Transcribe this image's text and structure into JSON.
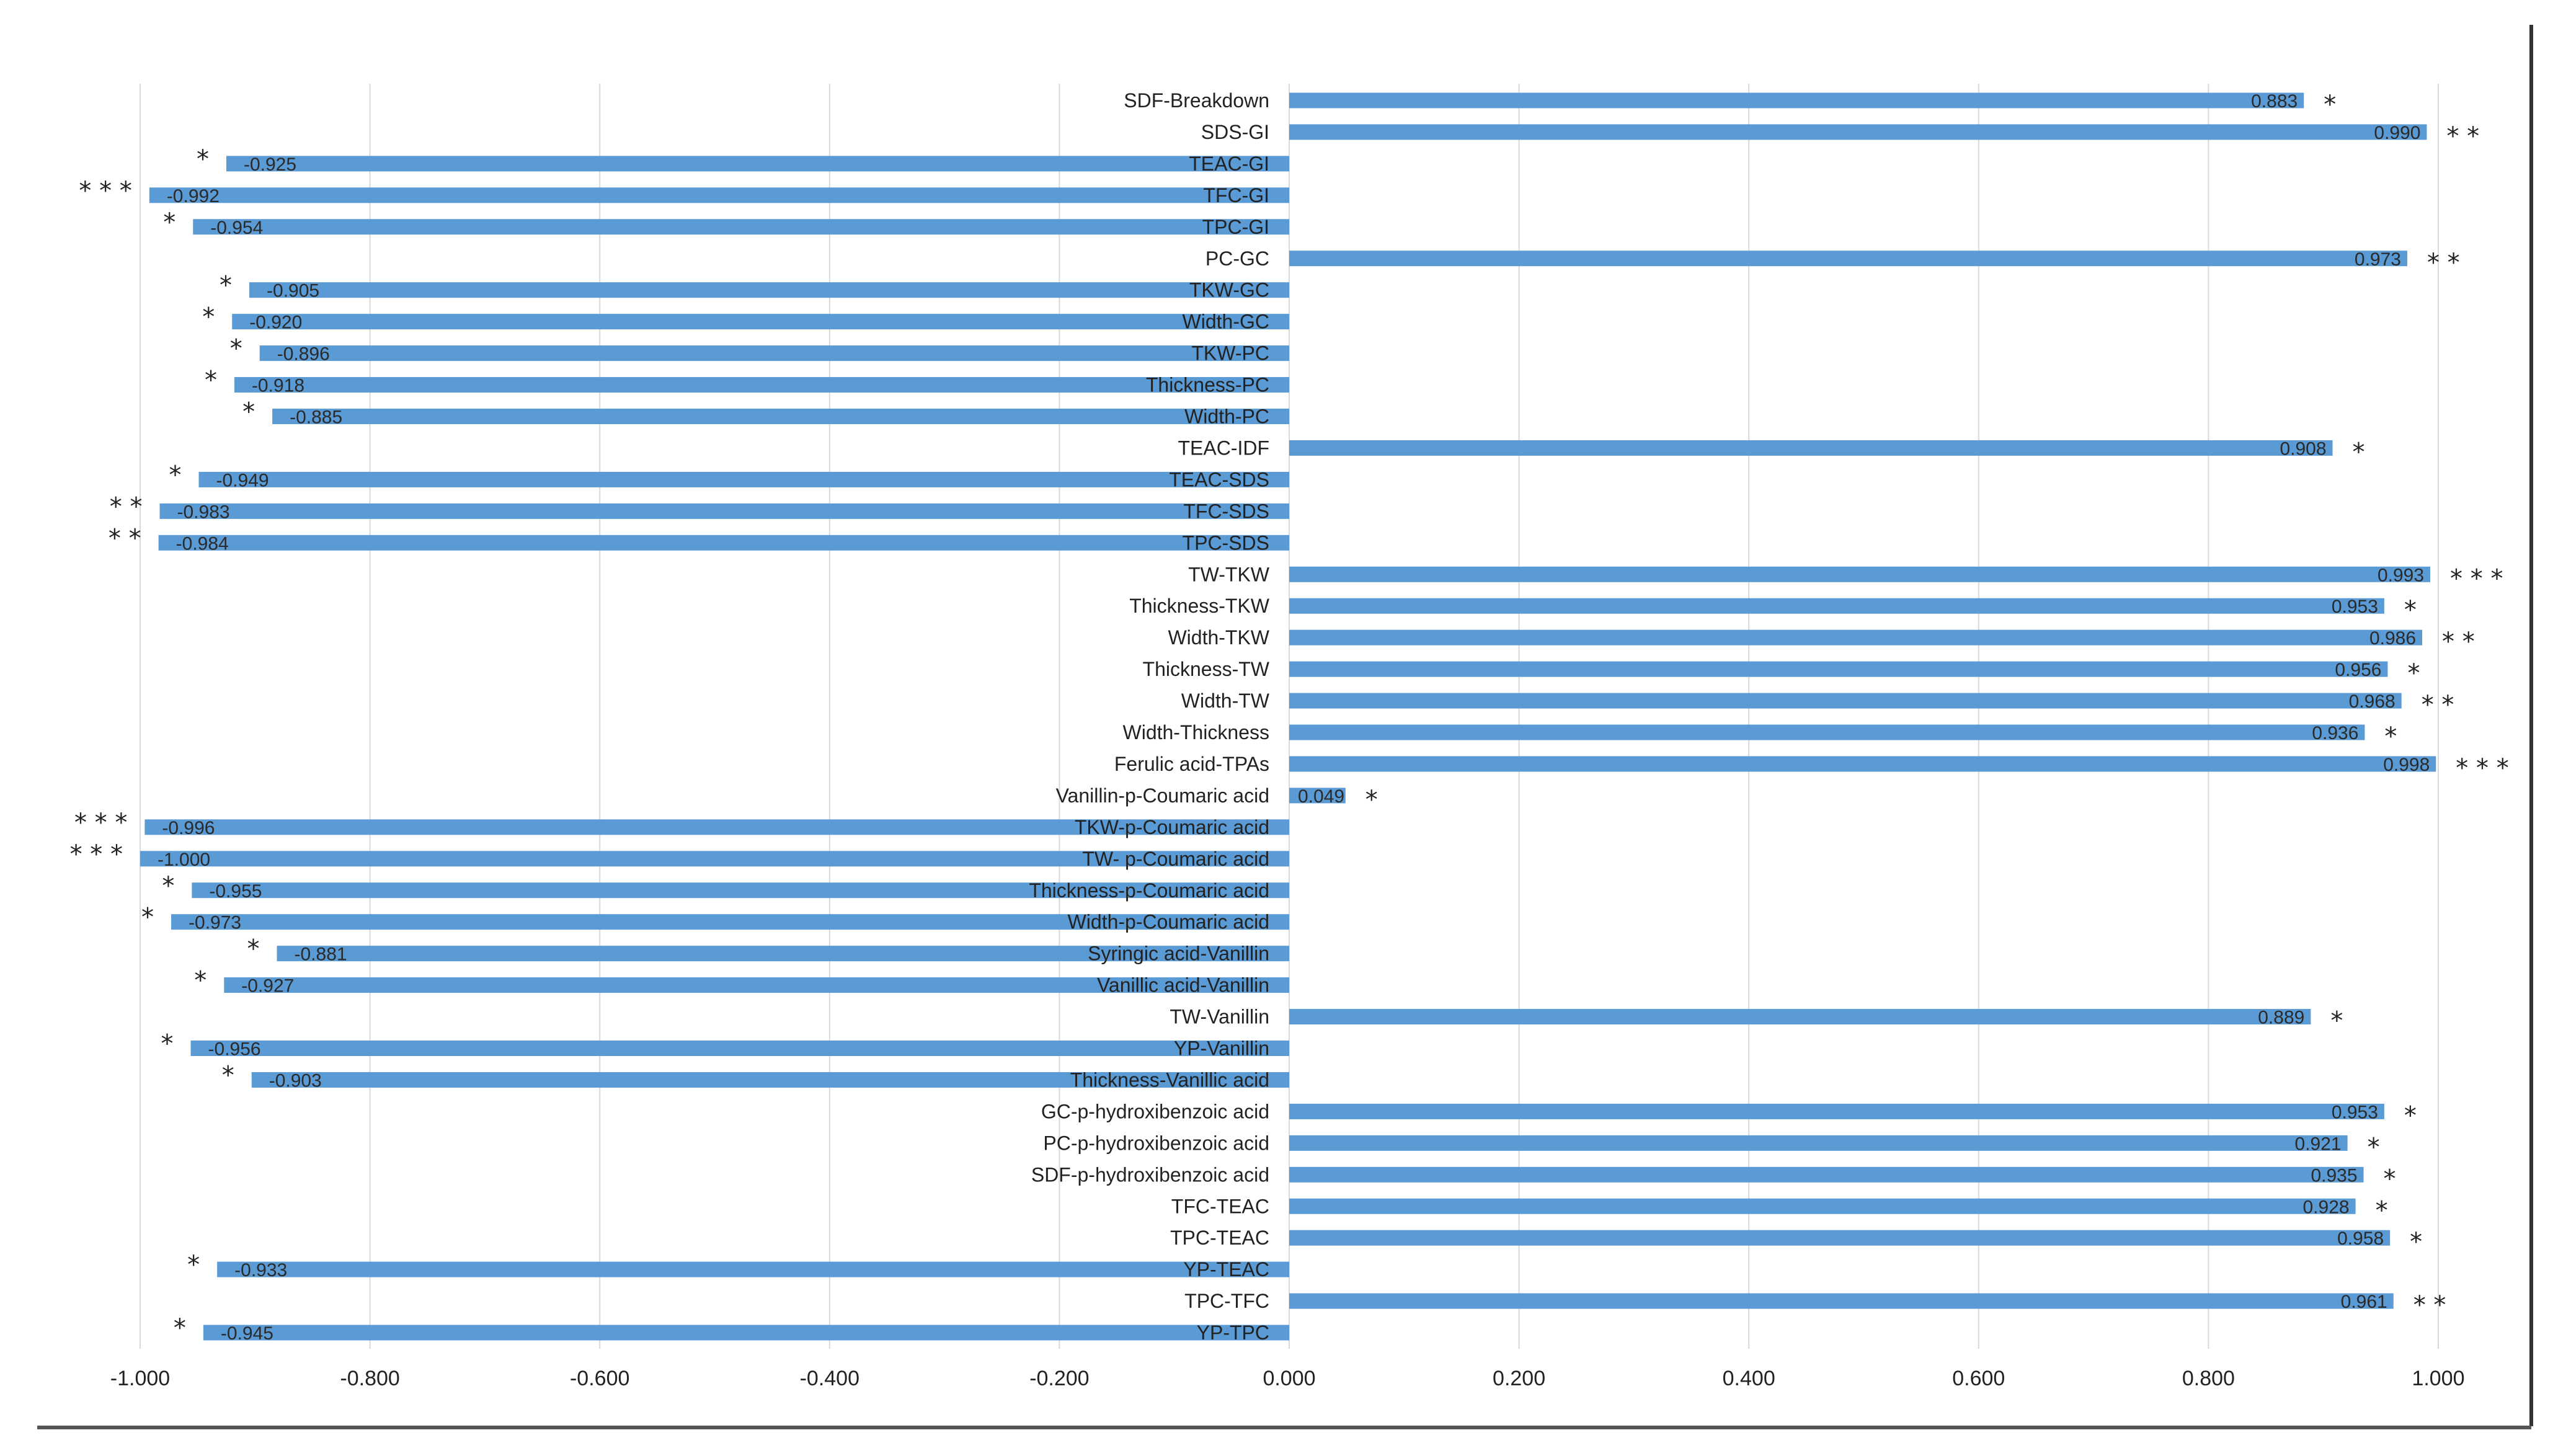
{
  "chart_data": {
    "type": "bar",
    "orientation": "horizontal",
    "title": "",
    "xlabel": "",
    "ylabel": "",
    "xlim": [
      -1.0,
      1.0
    ],
    "x_ticks": [
      "-1.000",
      "-0.800",
      "-0.600",
      "-0.400",
      "-0.200",
      "0.000",
      "0.200",
      "0.400",
      "0.600",
      "0.800",
      "1.000"
    ],
    "bar_color": "#5b9bd5",
    "grid": true,
    "bars": [
      {
        "category": "SDF-Breakdown",
        "value": 0.883,
        "label": "0.883",
        "sig": "*"
      },
      {
        "category": "SDS-GI",
        "value": 0.99,
        "label": "0.990",
        "sig": "**"
      },
      {
        "category": "TEAC-GI",
        "value": -0.925,
        "label": "-0.925",
        "sig": "*"
      },
      {
        "category": "TFC-GI",
        "value": -0.992,
        "label": "-0.992",
        "sig": "***"
      },
      {
        "category": "TPC-GI",
        "value": -0.954,
        "label": "-0.954",
        "sig": "*"
      },
      {
        "category": "PC-GC",
        "value": 0.973,
        "label": "0.973",
        "sig": "**"
      },
      {
        "category": "TKW-GC",
        "value": -0.905,
        "label": "-0.905",
        "sig": "*"
      },
      {
        "category": "Width-GC",
        "value": -0.92,
        "label": "-0.920",
        "sig": "*"
      },
      {
        "category": "TKW-PC",
        "value": -0.896,
        "label": "-0.896",
        "sig": "*"
      },
      {
        "category": "Thickness-PC",
        "value": -0.918,
        "label": "-0.918",
        "sig": "*"
      },
      {
        "category": "Width-PC",
        "value": -0.885,
        "label": "-0.885",
        "sig": "*"
      },
      {
        "category": "TEAC-IDF",
        "value": 0.908,
        "label": "0.908",
        "sig": "*"
      },
      {
        "category": "TEAC-SDS",
        "value": -0.949,
        "label": "-0.949",
        "sig": "*"
      },
      {
        "category": "TFC-SDS",
        "value": -0.983,
        "label": "-0.983",
        "sig": "**"
      },
      {
        "category": "TPC-SDS",
        "value": -0.984,
        "label": "-0.984",
        "sig": "**"
      },
      {
        "category": "TW-TKW",
        "value": 0.993,
        "label": "0.993",
        "sig": "***"
      },
      {
        "category": "Thickness-TKW",
        "value": 0.953,
        "label": "0.953",
        "sig": "*"
      },
      {
        "category": "Width-TKW",
        "value": 0.986,
        "label": "0.986",
        "sig": "**"
      },
      {
        "category": "Thickness-TW",
        "value": 0.956,
        "label": "0.956",
        "sig": "*"
      },
      {
        "category": "Width-TW",
        "value": 0.968,
        "label": "0.968",
        "sig": "**"
      },
      {
        "category": "Width-Thickness",
        "value": 0.936,
        "label": "0.936",
        "sig": "*"
      },
      {
        "category": "Ferulic acid-TPAs",
        "value": 0.998,
        "label": "0.998",
        "sig": "***"
      },
      {
        "category": "Vanillin-p-Coumaric acid",
        "value": 0.049,
        "label": "0.049",
        "sig": "*"
      },
      {
        "category": "TKW-p-Coumaric acid",
        "value": -0.996,
        "label": "-0.996",
        "sig": "***"
      },
      {
        "category": "TW- p-Coumaric acid",
        "value": -1.0,
        "label": "-1.000",
        "sig": "***"
      },
      {
        "category": "Thickness-p-Coumaric acid",
        "value": -0.955,
        "label": "-0.955",
        "sig": "*"
      },
      {
        "category": "Width-p-Coumaric acid",
        "value": -0.973,
        "label": "-0.973",
        "sig": "*"
      },
      {
        "category": "Syringic acid-Vanillin",
        "value": -0.881,
        "label": "-0.881",
        "sig": "*"
      },
      {
        "category": "Vanillic acid-Vanillin",
        "value": -0.927,
        "label": "-0.927",
        "sig": "*"
      },
      {
        "category": "TW-Vanillin",
        "value": 0.889,
        "label": "0.889",
        "sig": "*"
      },
      {
        "category": "YP-Vanillin",
        "value": -0.956,
        "label": "-0.956",
        "sig": "*"
      },
      {
        "category": "Thickness-Vanillic acid",
        "value": -0.903,
        "label": "-0.903",
        "sig": "*"
      },
      {
        "category": "GC-p-hydroxibenzoic acid",
        "value": 0.953,
        "label": "0.953",
        "sig": "*"
      },
      {
        "category": "PC-p-hydroxibenzoic acid",
        "value": 0.921,
        "label": "0.921",
        "sig": "*"
      },
      {
        "category": "SDF-p-hydroxibenzoic acid",
        "value": 0.935,
        "label": "0.935",
        "sig": "*"
      },
      {
        "category": "TFC-TEAC",
        "value": 0.928,
        "label": "0.928",
        "sig": "*"
      },
      {
        "category": "TPC-TEAC",
        "value": 0.958,
        "label": "0.958",
        "sig": "*"
      },
      {
        "category": "YP-TEAC",
        "value": -0.933,
        "label": "-0.933",
        "sig": "*"
      },
      {
        "category": "TPC-TFC",
        "value": 0.961,
        "label": "0.961",
        "sig": "**"
      },
      {
        "category": "YP-TPC",
        "value": -0.945,
        "label": "-0.945",
        "sig": "*"
      }
    ]
  }
}
